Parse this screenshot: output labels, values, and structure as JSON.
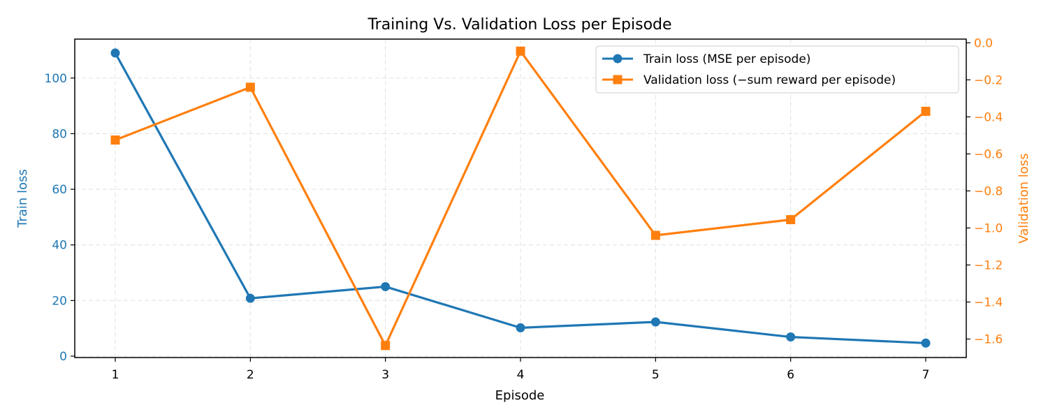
{
  "chart_data": {
    "type": "line",
    "title": "Training Vs. Validation Loss per Episode",
    "xlabel": "Episode",
    "ylabel_left": "Train loss",
    "ylabel_right": "Validation loss",
    "x": [
      1,
      2,
      3,
      4,
      5,
      6,
      7
    ],
    "x_ticks": [
      "1",
      "2",
      "3",
      "4",
      "5",
      "6",
      "7"
    ],
    "xlim": [
      0.7,
      7.3
    ],
    "ylim_left": [
      -0.5,
      114
    ],
    "ylim_right": [
      -1.7,
      0.02
    ],
    "left_ticks": [
      {
        "value": 0,
        "label": "0"
      },
      {
        "value": 20,
        "label": "20"
      },
      {
        "value": 40,
        "label": "40"
      },
      {
        "value": 60,
        "label": "60"
      },
      {
        "value": 80,
        "label": "80"
      },
      {
        "value": 100,
        "label": "100"
      }
    ],
    "right_ticks": [
      {
        "value": 0.0,
        "label": "0.0"
      },
      {
        "value": -0.2,
        "label": "−0.2"
      },
      {
        "value": -0.4,
        "label": "−0.4"
      },
      {
        "value": -0.6,
        "label": "−0.6"
      },
      {
        "value": -0.8,
        "label": "−0.8"
      },
      {
        "value": -1.0,
        "label": "−1.0"
      },
      {
        "value": -1.2,
        "label": "−1.2"
      },
      {
        "value": -1.4,
        "label": "−1.4"
      },
      {
        "value": -1.6,
        "label": "−1.6"
      }
    ],
    "grid": true,
    "legend_position": "top-right",
    "series": [
      {
        "name": "Train loss (MSE per episode)",
        "axis": "left",
        "marker": "circle",
        "color": "#1f77b4",
        "values": [
          109,
          20.8,
          25,
          10.2,
          12.3,
          6.9,
          4.7
        ]
      },
      {
        "name": "Validation loss (−sum reward per episode)",
        "axis": "right",
        "marker": "square",
        "color": "#ff7f0e",
        "values": [
          -0.525,
          -0.24,
          -1.635,
          -0.045,
          -1.04,
          -0.955,
          -0.37
        ]
      }
    ]
  }
}
